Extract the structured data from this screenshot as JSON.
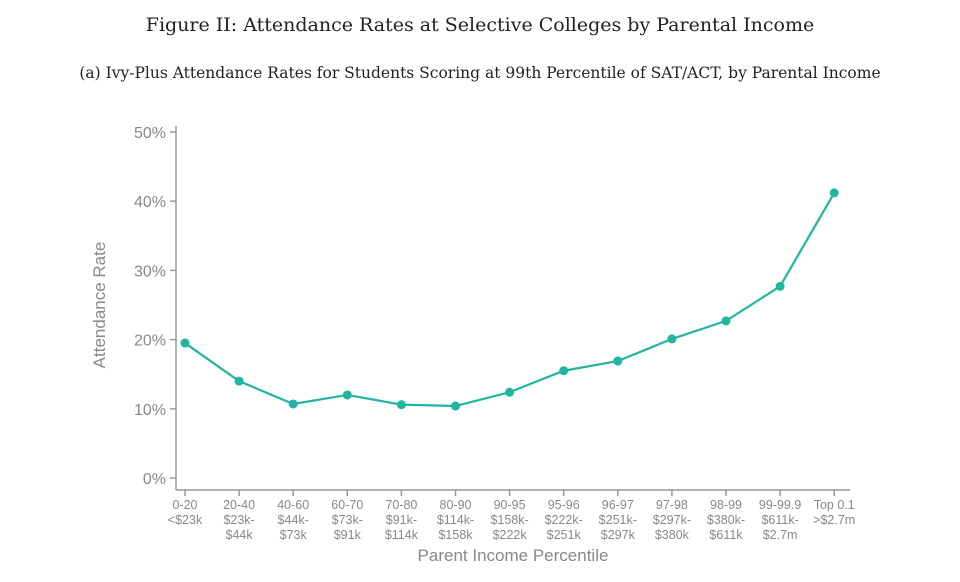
{
  "title": "Figure II: Attendance Rates at Selective Colleges by Parental Income",
  "subtitle": "(a) Ivy-Plus Attendance Rates for Students Scoring at 99th Percentile of SAT/ACT, by Parental Income",
  "chart_data": {
    "type": "line",
    "xlabel": "Parent Income Percentile",
    "ylabel": "Attendance Rate",
    "ylim": [
      0,
      50
    ],
    "yticks": [
      "0%",
      "10%",
      "20%",
      "30%",
      "40%",
      "50%"
    ],
    "grid": false,
    "line_color": "#1fb5a0",
    "categories": [
      [
        "0-20",
        "<$23k"
      ],
      [
        "20-40",
        "$23k-",
        "$44k"
      ],
      [
        "40-60",
        "$44k-",
        "$73k"
      ],
      [
        "60-70",
        "$73k-",
        "$91k"
      ],
      [
        "70-80",
        "$91k-",
        "$114k"
      ],
      [
        "80-90",
        "$114k-",
        "$158k"
      ],
      [
        "90-95",
        "$158k-",
        "$222k"
      ],
      [
        "95-96",
        "$222k-",
        "$251k"
      ],
      [
        "96-97",
        "$251k-",
        "$297k"
      ],
      [
        "97-98",
        "$297k-",
        "$380k"
      ],
      [
        "98-99",
        "$380k-",
        "$611k"
      ],
      [
        "99-99.9",
        "$611k-",
        "$2.7m"
      ],
      [
        "Top 0.1",
        ">$2.7m"
      ]
    ],
    "values": [
      19.5,
      14.0,
      10.7,
      12.0,
      10.6,
      10.4,
      12.4,
      15.5,
      16.9,
      20.1,
      22.7,
      27.7,
      41.2
    ]
  }
}
